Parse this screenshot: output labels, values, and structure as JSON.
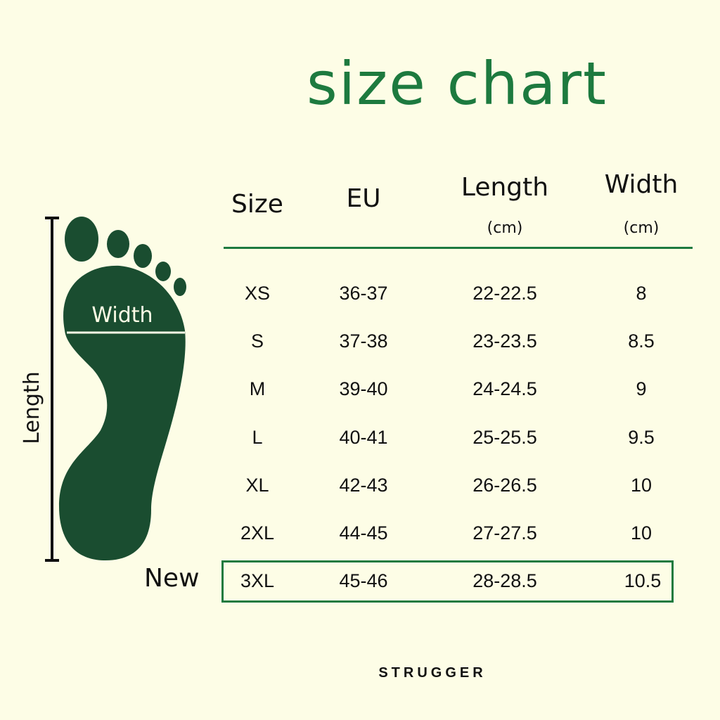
{
  "title": "size chart",
  "colors": {
    "background": "#fdfde6",
    "accent": "#1d7a3f",
    "foot": "#1a4d30"
  },
  "diagram": {
    "length_label": "Length",
    "width_label": "Width",
    "icon": "foot-icon"
  },
  "table": {
    "headers": [
      {
        "label": "Size",
        "unit": ""
      },
      {
        "label": "EU",
        "unit": ""
      },
      {
        "label": "Length",
        "unit": "(cm)"
      },
      {
        "label": "Width",
        "unit": "(cm)"
      }
    ],
    "rows": [
      [
        "XS",
        "36-37",
        "22-22.5",
        "8"
      ],
      [
        "S",
        "37-38",
        "23-23.5",
        "8.5"
      ],
      [
        "M",
        "39-40",
        "24-24.5",
        "9"
      ],
      [
        "L",
        "40-41",
        "25-25.5",
        "9.5"
      ],
      [
        "XL",
        "42-43",
        "26-26.5",
        "10"
      ],
      [
        "2XL",
        "44-45",
        "27-27.5",
        "10"
      ],
      [
        "3XL",
        "45-46",
        "28-28.5",
        "10.5"
      ]
    ],
    "highlight_label": "New"
  },
  "brand": "STRUGGER"
}
